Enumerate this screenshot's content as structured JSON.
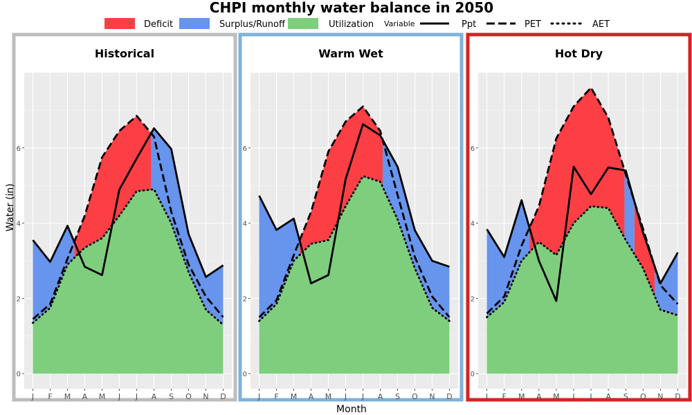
{
  "title": "CHPI monthly water balance in 2050",
  "xlabel": "Month",
  "ylabel": "Water (in)",
  "legend": {
    "fills": [
      {
        "label": "Deficit",
        "color": "#fc3f45"
      },
      {
        "label": "Surplus/Runoff",
        "color": "#6794ec"
      },
      {
        "label": "Utilization",
        "color": "#7ece7e"
      }
    ],
    "variable_title": "Variable",
    "lines": [
      {
        "label": "Ppt",
        "style": "solid"
      },
      {
        "label": "PET",
        "style": "longdash"
      },
      {
        "label": "AET",
        "style": "dotted"
      }
    ]
  },
  "chart_data": [
    {
      "type": "area",
      "panel": "Historical",
      "border_color": "#bdbdbd",
      "categories": [
        "J",
        "F",
        "M",
        "A",
        "M",
        "J",
        "J",
        "A",
        "S",
        "O",
        "N",
        "D"
      ],
      "ylim": [
        -0.4,
        8.0
      ],
      "yticks": [
        0,
        2,
        4,
        6
      ],
      "grid": true,
      "series": [
        {
          "name": "Ppt",
          "values": [
            3.55,
            2.97,
            3.93,
            2.84,
            2.62,
            4.89,
            5.72,
            6.52,
            5.97,
            3.71,
            2.57,
            2.88
          ]
        },
        {
          "name": "PET",
          "values": [
            1.45,
            1.85,
            3.05,
            4.2,
            5.75,
            6.45,
            6.85,
            6.3,
            4.3,
            2.9,
            2.05,
            1.5
          ]
        },
        {
          "name": "AET",
          "values": [
            1.35,
            1.75,
            2.9,
            3.35,
            3.6,
            4.2,
            4.85,
            4.9,
            4.0,
            2.7,
            1.7,
            1.3
          ]
        }
      ]
    },
    {
      "type": "area",
      "panel": "Warm Wet",
      "border_color": "#7fb2da",
      "categories": [
        "J",
        "F",
        "M",
        "A",
        "M",
        "J",
        "J",
        "A",
        "S",
        "O",
        "N",
        "D"
      ],
      "ylim": [
        -0.4,
        8.0
      ],
      "yticks": [
        0,
        2,
        4,
        6
      ],
      "grid": true,
      "series": [
        {
          "name": "Ppt",
          "values": [
            4.73,
            3.82,
            4.12,
            2.4,
            2.62,
            5.17,
            6.63,
            6.33,
            5.5,
            3.81,
            3.0,
            2.84
          ]
        },
        {
          "name": "PET",
          "values": [
            1.5,
            1.95,
            3.15,
            4.3,
            5.9,
            6.7,
            7.1,
            6.45,
            4.75,
            3.1,
            2.05,
            1.5
          ]
        },
        {
          "name": "AET",
          "values": [
            1.4,
            1.85,
            3.0,
            3.45,
            3.55,
            4.45,
            5.25,
            5.1,
            4.1,
            2.8,
            1.75,
            1.4
          ]
        }
      ]
    },
    {
      "type": "area",
      "panel": "Hot Dry",
      "border_color": "#d42224",
      "categories": [
        "J",
        "F",
        "M",
        "A",
        "M",
        "J",
        "J",
        "A",
        "S",
        "O",
        "N",
        "D"
      ],
      "ylim": [
        -0.4,
        8.0
      ],
      "yticks": [
        0,
        2,
        4,
        6
      ],
      "grid": true,
      "series": [
        {
          "name": "Ppt",
          "values": [
            3.84,
            3.1,
            4.61,
            3.0,
            1.93,
            5.5,
            4.77,
            5.48,
            5.4,
            3.75,
            2.4,
            3.22
          ]
        },
        {
          "name": "PET",
          "values": [
            1.6,
            2.05,
            3.4,
            4.45,
            6.25,
            7.1,
            7.6,
            6.8,
            5.3,
            3.85,
            2.35,
            1.85
          ]
        },
        {
          "name": "AET",
          "values": [
            1.5,
            1.9,
            3.0,
            3.5,
            3.15,
            4.0,
            4.45,
            4.4,
            3.55,
            2.8,
            1.7,
            1.55
          ]
        }
      ]
    }
  ]
}
